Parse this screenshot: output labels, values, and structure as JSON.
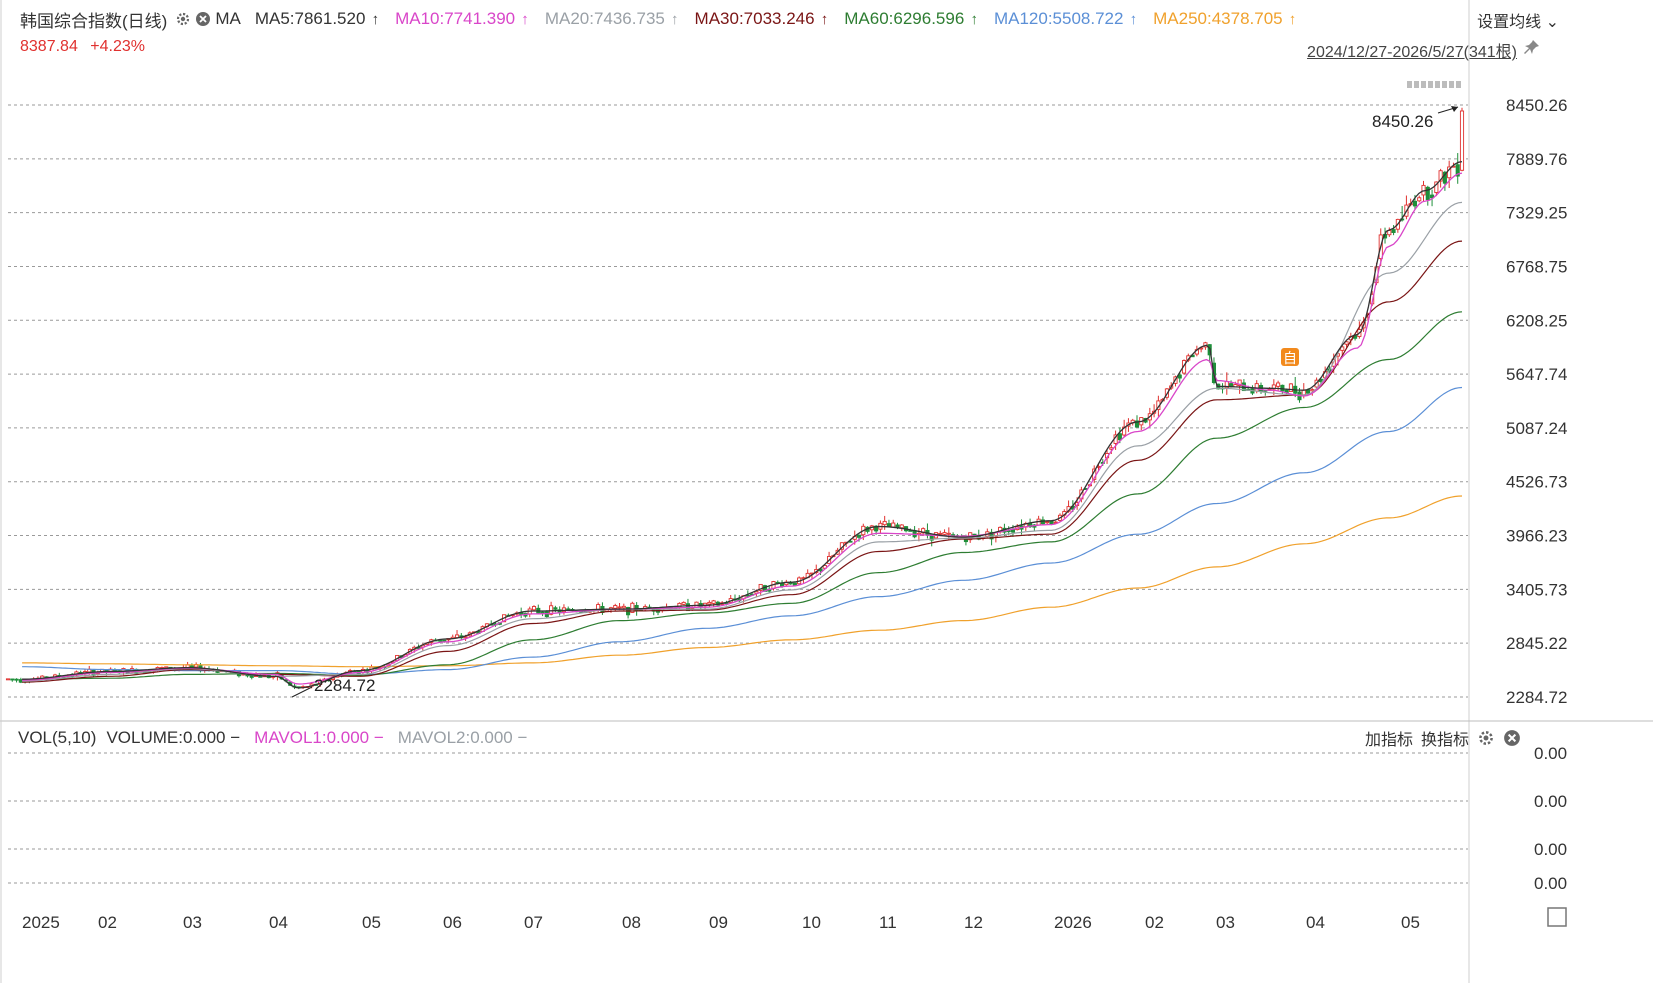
{
  "header": {
    "title": "韩国综合指数(日线)",
    "indicator": "MA",
    "ma_items": [
      {
        "text": "MA5:7861.520",
        "color": "#333333"
      },
      {
        "text": "MA10:7741.390",
        "color": "#d946c9"
      },
      {
        "text": "MA20:7436.735",
        "color": "#9aa0a6"
      },
      {
        "text": "MA30:7033.246",
        "color": "#7a1515"
      },
      {
        "text": "MA60:6296.596",
        "color": "#2e7d32"
      },
      {
        "text": "MA120:5508.722",
        "color": "#5b8fd6"
      },
      {
        "text": "MA250:4378.705",
        "color": "#f0a12c"
      }
    ],
    "arrow_glyph": "↑",
    "settings_label": "设置均线 ⌄",
    "last_price": "8387.84",
    "change_pct": "+4.23%",
    "range_label": "2024/12/27-2026/5/27(341根)"
  },
  "volume_panel": {
    "label": "VOL(5,10)",
    "items": [
      {
        "text": "VOLUME:0.000",
        "color": "#333333"
      },
      {
        "text": "MAVOL1:0.000",
        "color": "#d946c9"
      },
      {
        "text": "MAVOL2:0.000",
        "color": "#9aa0a6"
      }
    ],
    "dash": "−",
    "add_indicator": "加指标",
    "switch_indicator": "换指标",
    "y_ticks": [
      "0.00",
      "0.00",
      "0.00",
      "0.00"
    ]
  },
  "chart_data": {
    "type": "line",
    "title": "韩国综合指数(日线)",
    "y_ticks": [
      8450.26,
      7889.76,
      7329.25,
      6768.75,
      6208.25,
      5647.74,
      5087.24,
      4526.73,
      3966.23,
      3405.73,
      2845.22,
      2284.72
    ],
    "ylim": [
      2284.72,
      8450.26
    ],
    "x_ticks": [
      "2025",
      "02",
      "03",
      "04",
      "05",
      "06",
      "07",
      "08",
      "09",
      "10",
      "11",
      "12",
      "2026",
      "02",
      "03",
      "04",
      "05"
    ],
    "annotations": [
      {
        "text": "8450.26",
        "x": "2026-05-27",
        "y": 8450.26
      },
      {
        "text": "2284.72",
        "x": "2025-04-09",
        "y": 2284.72
      }
    ],
    "badge": "自",
    "grid": true,
    "series": [
      {
        "name": "MA5",
        "color": "#333333",
        "x": [
          "2025-01",
          "2025-02",
          "2025-03",
          "2025-04-01",
          "2025-04-09",
          "2025-05",
          "2025-06",
          "2025-07",
          "2025-08",
          "2025-09",
          "2025-10",
          "2025-11",
          "2025-12",
          "2026-01",
          "2026-02",
          "2026-02-26",
          "2026-03",
          "2026-03-20",
          "2026-04",
          "2026-04-20",
          "2026-05",
          "2026-05-14",
          "2026-05-27"
        ],
        "y": [
          2470,
          2550,
          2590,
          2500,
          2380,
          2560,
          2890,
          3180,
          3200,
          3240,
          3480,
          4060,
          3950,
          4120,
          5150,
          5950,
          5520,
          5500,
          5480,
          6060,
          7150,
          7560,
          7861
        ]
      },
      {
        "name": "MA10",
        "color": "#d946c9",
        "x": [
          "2025-01",
          "2025-02",
          "2025-03",
          "2025-04-01",
          "2025-04-09",
          "2025-05",
          "2025-06",
          "2025-07",
          "2025-08",
          "2025-09",
          "2025-10",
          "2025-11",
          "2025-12",
          "2026-01",
          "2026-02",
          "2026-02-26",
          "2026-03",
          "2026-03-20",
          "2026-04",
          "2026-04-20",
          "2026-05",
          "2026-05-14",
          "2026-05-27"
        ],
        "y": [
          2460,
          2540,
          2585,
          2520,
          2420,
          2540,
          2860,
          3150,
          3200,
          3220,
          3440,
          3990,
          3960,
          4080,
          5050,
          5800,
          5580,
          5480,
          5420,
          5920,
          6980,
          7450,
          7741
        ]
      },
      {
        "name": "MA20",
        "color": "#9aa0a6",
        "x": [
          "2025-01",
          "2025-02",
          "2025-03",
          "2025-04",
          "2025-05",
          "2025-06",
          "2025-07",
          "2025-08",
          "2025-09",
          "2025-10",
          "2025-11",
          "2025-12",
          "2026-01",
          "2026-02",
          "2026-03",
          "2026-04",
          "2026-05",
          "2026-05-27"
        ],
        "y": [
          2450,
          2520,
          2580,
          2500,
          2520,
          2820,
          3100,
          3200,
          3200,
          3400,
          3900,
          3940,
          4020,
          4900,
          5500,
          5430,
          6700,
          7436
        ]
      },
      {
        "name": "MA30",
        "color": "#7a1515",
        "x": [
          "2025-01",
          "2025-02",
          "2025-03",
          "2025-04",
          "2025-05",
          "2025-06",
          "2025-07",
          "2025-08",
          "2025-09",
          "2025-10",
          "2025-11",
          "2025-12",
          "2026-01",
          "2026-02",
          "2026-03",
          "2026-04",
          "2026-05",
          "2026-05-27"
        ],
        "y": [
          2440,
          2500,
          2570,
          2520,
          2500,
          2760,
          3050,
          3180,
          3190,
          3350,
          3800,
          3930,
          3980,
          4750,
          5380,
          5430,
          6400,
          7033
        ]
      },
      {
        "name": "MA60",
        "color": "#2e7d32",
        "x": [
          "2025-01",
          "2025-02",
          "2025-03",
          "2025-04",
          "2025-05",
          "2025-06",
          "2025-07",
          "2025-08",
          "2025-09",
          "2025-10",
          "2025-11",
          "2025-12",
          "2026-01",
          "2026-02",
          "2026-03",
          "2026-04",
          "2026-05",
          "2026-05-27"
        ],
        "y": [
          2470,
          2480,
          2520,
          2530,
          2510,
          2620,
          2880,
          3080,
          3160,
          3260,
          3580,
          3790,
          3900,
          4400,
          4980,
          5300,
          5800,
          6296
        ]
      },
      {
        "name": "MA120",
        "color": "#5b8fd6",
        "x": [
          "2025-01",
          "2025-02",
          "2025-03",
          "2025-04",
          "2025-05",
          "2025-06",
          "2025-07",
          "2025-08",
          "2025-09",
          "2025-10",
          "2025-11",
          "2025-12",
          "2026-01",
          "2026-02",
          "2026-03",
          "2026-04",
          "2026-05",
          "2026-05-27"
        ],
        "y": [
          2600,
          2570,
          2560,
          2560,
          2520,
          2570,
          2700,
          2860,
          3000,
          3130,
          3330,
          3500,
          3680,
          3980,
          4300,
          4620,
          5050,
          5508
        ]
      },
      {
        "name": "MA250",
        "color": "#f0a12c",
        "x": [
          "2025-01",
          "2025-02",
          "2025-03",
          "2025-04",
          "2025-05",
          "2025-06",
          "2025-07",
          "2025-08",
          "2025-09",
          "2025-10",
          "2025-11",
          "2025-12",
          "2026-01",
          "2026-02",
          "2026-03",
          "2026-04",
          "2026-05",
          "2026-05-27"
        ],
        "y": [
          2640,
          2630,
          2620,
          2610,
          2600,
          2610,
          2640,
          2720,
          2800,
          2880,
          2980,
          3080,
          3220,
          3420,
          3640,
          3880,
          4150,
          4378
        ]
      }
    ]
  }
}
